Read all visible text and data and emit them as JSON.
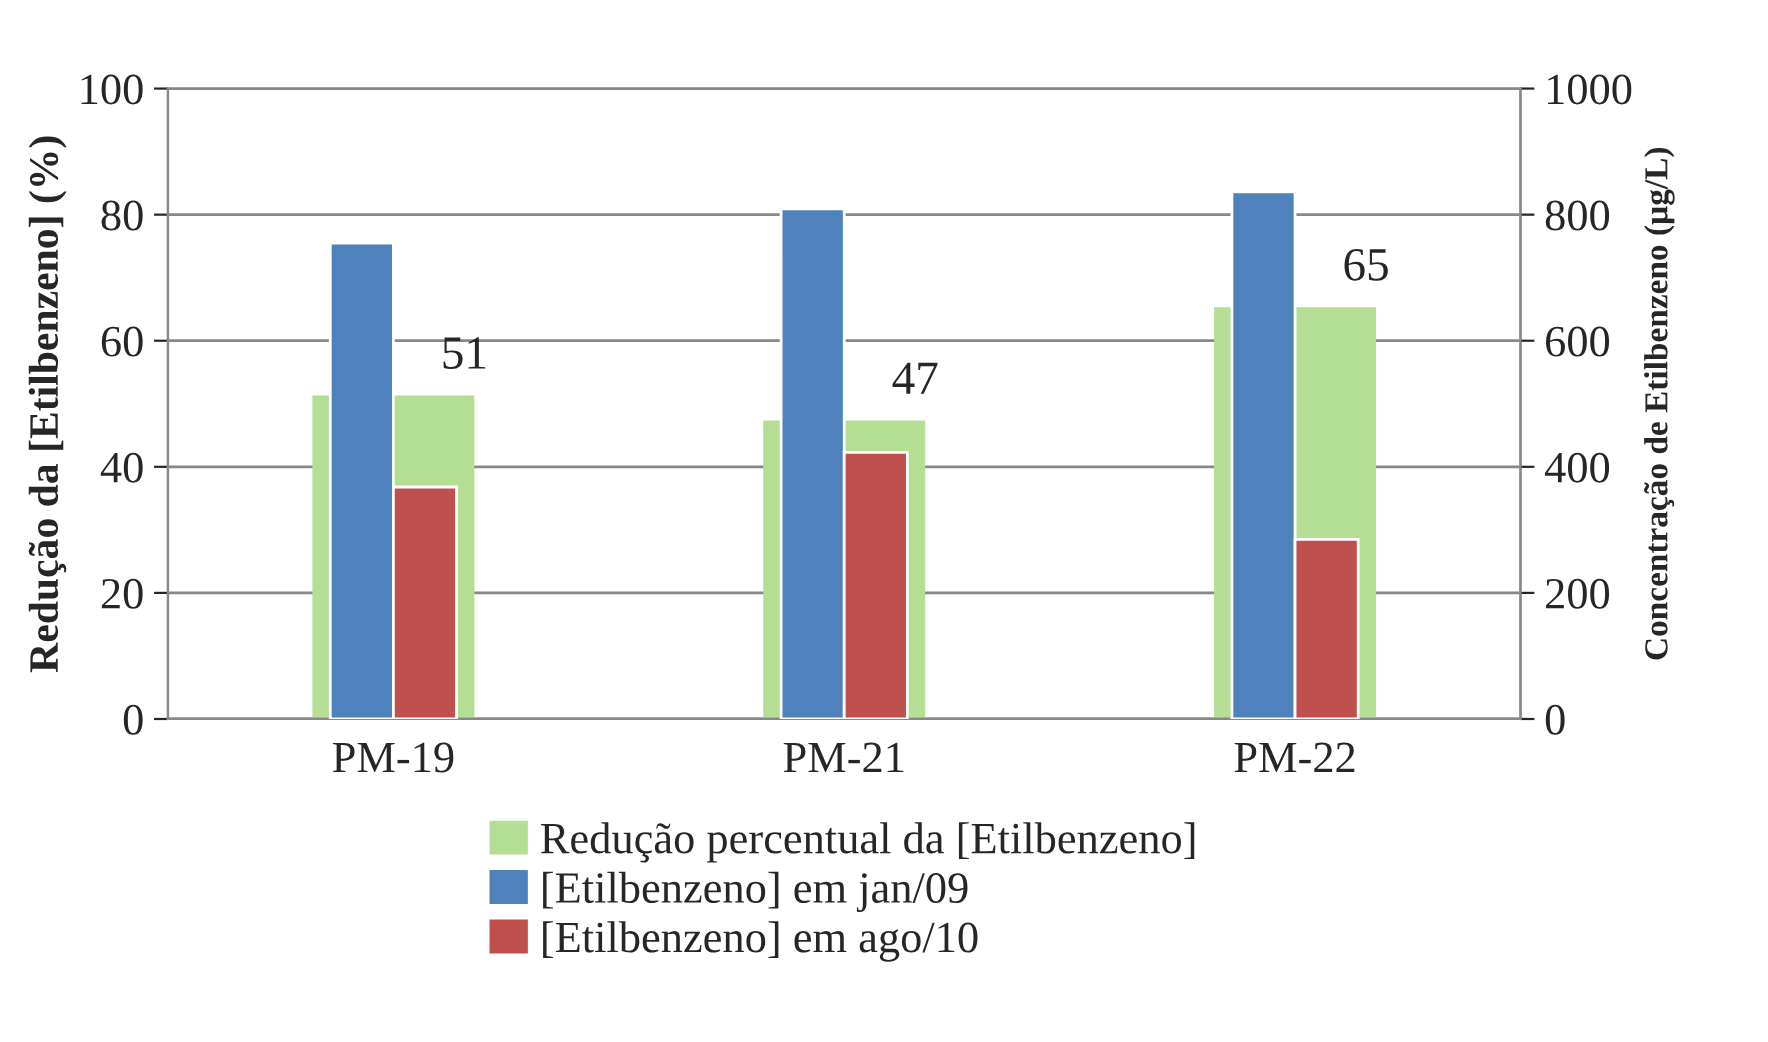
{
  "chart_data": {
    "type": "bar",
    "categories": [
      "PM-19",
      "PM-21",
      "PM-22"
    ],
    "ylabel": "Redução da [Etilbenzeno] (%)",
    "y2label": "Concentração de Etilbenzeno (µg/L)",
    "ylim": [
      0,
      100
    ],
    "yticks": [
      0,
      20,
      40,
      60,
      80,
      100
    ],
    "y2lim": [
      0,
      1000
    ],
    "y2ticks": [
      0,
      200,
      400,
      600,
      800,
      1000
    ],
    "grid": "y",
    "legend": "bottom",
    "series": [
      {
        "name": "Redução percentual da [Etilbenzeno]",
        "color": "#b4de94",
        "values": [
          51,
          47,
          65
        ],
        "value_labels": [
          "51",
          "47",
          "65"
        ]
      },
      {
        "name": "[Etilbenzeno] em jan/09",
        "color": "#4f81bd",
        "values": [
          755,
          809,
          836
        ],
        "axis": "y2"
      },
      {
        "name": "[Etilbenzeno] em ago/10",
        "color": "#c0504d",
        "values": [
          368,
          423,
          285
        ],
        "axis": "y2"
      }
    ]
  }
}
